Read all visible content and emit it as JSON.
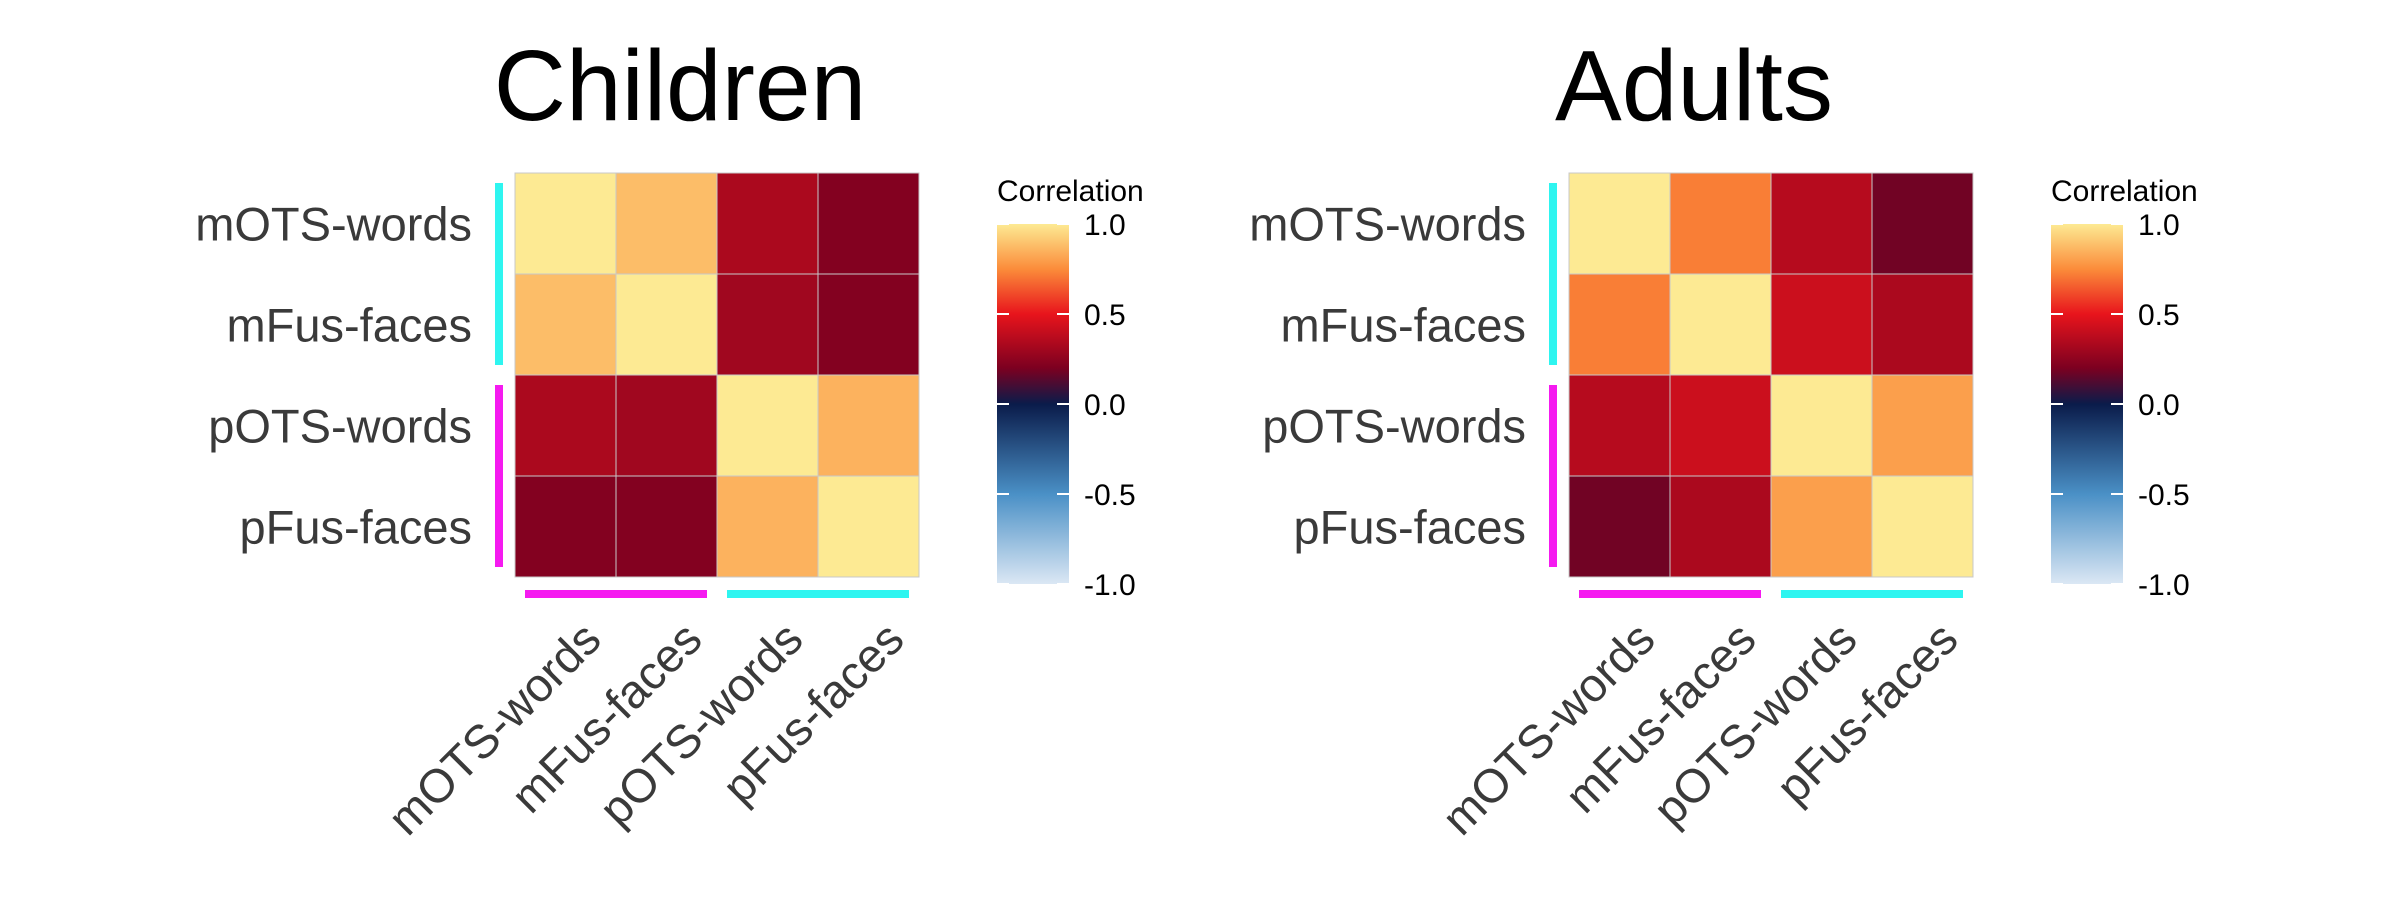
{
  "chart_data": [
    {
      "type": "heatmap",
      "title": "Children",
      "rows": [
        "mOTS-words",
        "mFus-faces",
        "pOTS-words",
        "pFus-faces"
      ],
      "columns": [
        "mOTS-words",
        "mFus-faces",
        "pOTS-words",
        "pFus-faces"
      ],
      "values": [
        [
          1.0,
          0.88,
          0.33,
          0.22
        ],
        [
          0.88,
          1.0,
          0.3,
          0.22
        ],
        [
          0.33,
          0.3,
          1.0,
          0.85
        ],
        [
          0.22,
          0.22,
          0.85,
          1.0
        ]
      ],
      "row_groups": [
        {
          "rows": [
            "mOTS-words",
            "mFus-faces"
          ],
          "color": "#2ef5f0"
        },
        {
          "rows": [
            "pOTS-words",
            "pFus-faces"
          ],
          "color": "#f51af0"
        }
      ],
      "column_groups": [
        {
          "columns": [
            "mOTS-words",
            "mFus-faces"
          ],
          "color": "#f51af0"
        },
        {
          "columns": [
            "pOTS-words",
            "pFus-faces"
          ],
          "color": "#2ef5f0"
        }
      ],
      "legend": {
        "title": "Correlation",
        "ticks": [
          "1.0",
          "0.5",
          "0.0",
          "-0.5",
          "-1.0"
        ],
        "range": [
          -1.0,
          1.0
        ],
        "placement": "right"
      }
    },
    {
      "type": "heatmap",
      "title": "Adults",
      "rows": [
        "mOTS-words",
        "mFus-faces",
        "pOTS-words",
        "pFus-faces"
      ],
      "columns": [
        "mOTS-words",
        "mFus-faces",
        "pOTS-words",
        "pFus-faces"
      ],
      "values": [
        [
          1.0,
          0.72,
          0.36,
          0.18
        ],
        [
          0.72,
          1.0,
          0.42,
          0.33
        ],
        [
          0.36,
          0.42,
          1.0,
          0.8
        ],
        [
          0.18,
          0.33,
          0.8,
          1.0
        ]
      ],
      "row_groups": [
        {
          "rows": [
            "mOTS-words",
            "mFus-faces"
          ],
          "color": "#2ef5f0"
        },
        {
          "rows": [
            "pOTS-words",
            "pFus-faces"
          ],
          "color": "#f51af0"
        }
      ],
      "column_groups": [
        {
          "columns": [
            "mOTS-words",
            "mFus-faces"
          ],
          "color": "#f51af0"
        },
        {
          "columns": [
            "pOTS-words",
            "pFus-faces"
          ],
          "color": "#2ef5f0"
        }
      ],
      "legend": {
        "title": "Correlation",
        "ticks": [
          "1.0",
          "0.5",
          "0.0",
          "-0.5",
          "-1.0"
        ],
        "range": [
          -1.0,
          1.0
        ],
        "placement": "right"
      }
    }
  ],
  "colorscale": {
    "stops": [
      {
        "value": -1.0,
        "color": "#dbe7f4"
      },
      {
        "value": -0.5,
        "color": "#4a90c6"
      },
      {
        "value": 0.0,
        "color": "#0a1b4a"
      },
      {
        "value": 0.2,
        "color": "#7c0020"
      },
      {
        "value": 0.5,
        "color": "#e8141c"
      },
      {
        "value": 0.75,
        "color": "#fb8c3a"
      },
      {
        "value": 1.0,
        "color": "#fdea93"
      }
    ],
    "grid_line_color": "#c8c8c8"
  }
}
